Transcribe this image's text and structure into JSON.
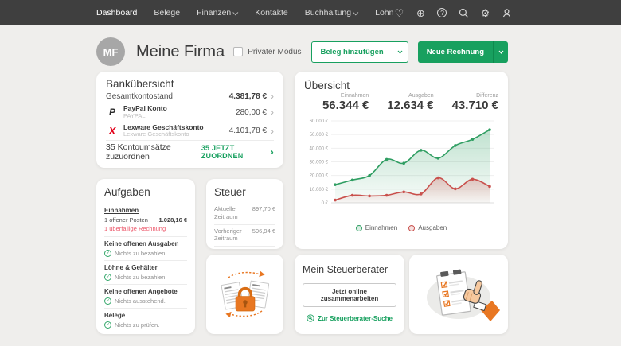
{
  "nav": {
    "items": [
      {
        "label": "Dashboard"
      },
      {
        "label": "Belege"
      },
      {
        "label": "Finanzen"
      },
      {
        "label": "Kontakte"
      },
      {
        "label": "Buchhaltung"
      },
      {
        "label": "Lohn"
      }
    ]
  },
  "header": {
    "avatar_initials": "MF",
    "company_name": "Meine Firma",
    "private_mode_label": "Privater Modus",
    "add_receipt_label": "Beleg hinzufügen",
    "new_invoice_label": "Neue Rechnung"
  },
  "bank": {
    "title": "Bankübersicht",
    "total_label": "Gesamtkontostand",
    "total_value": "4.381,78 €",
    "accounts": [
      {
        "name": "PayPal Konto",
        "subtitle": "PAYPAL",
        "value": "280,00 €"
      },
      {
        "name": "Lexware Geschäftskonto",
        "subtitle": "Lexware Geschäftskonto",
        "value": "4.101,78 €"
      }
    ],
    "pending_label": "35 Kontoumsätze zuzuordnen",
    "pending_action": "35 JETZT ZUORDNEN"
  },
  "overview": {
    "title": "Übersicht",
    "stats": [
      {
        "label": "Einnahmen",
        "value": "56.344 €"
      },
      {
        "label": "Ausgaben",
        "value": "12.634 €"
      },
      {
        "label": "Differenz",
        "value": "43.710 €"
      }
    ]
  },
  "chart_data": {
    "type": "area",
    "x": [
      1,
      2,
      3,
      4,
      5,
      6,
      7,
      8,
      9,
      10
    ],
    "series": [
      {
        "name": "Einnahmen",
        "color": "#2f9e62",
        "values": [
          13300,
          16700,
          20000,
          31800,
          29000,
          38500,
          32700,
          42000,
          46500,
          53500
        ]
      },
      {
        "name": "Ausgaben",
        "color": "#c9504c",
        "values": [
          2000,
          5500,
          5000,
          5500,
          8000,
          6500,
          18300,
          10300,
          17300,
          12000
        ]
      }
    ],
    "ylim": [
      0,
      60000
    ],
    "yticks": [
      "60.000 €",
      "50.000 €",
      "40.000 €",
      "30.000 €",
      "20.000 €",
      "10.000 €",
      "0 €"
    ],
    "grid": true,
    "legend_position": "bottom"
  },
  "tasks": {
    "title": "Aufgaben",
    "sections": [
      {
        "heading": "Einnahmen",
        "open_item": "1 offener Posten",
        "open_value": "1.028,16 €",
        "alert_item": "1 überfällige Rechnung"
      },
      {
        "heading": "Keine offenen Ausgaben",
        "status": "Nichts zu bezahlen."
      },
      {
        "heading": "Löhne & Gehälter",
        "status": "Nichts zu bezahlen"
      },
      {
        "heading": "Keine offenen Angebote",
        "status": "Nichts ausstehend."
      },
      {
        "heading": "Belege",
        "status": "Nichts zu prüfen."
      }
    ]
  },
  "tax": {
    "title": "Steuer",
    "rows": [
      {
        "label": "Aktueller Zeitraum",
        "value": "897,70 €"
      },
      {
        "label": "Vorheriger Zeitraum",
        "value": "596,94 €"
      }
    ]
  },
  "advisor": {
    "title": "Mein Steuerberater",
    "button_label": "Jetzt online zusammenarbeiten",
    "link_label": "Zur Steuerberater-Suche"
  },
  "colors": {
    "accent_green": "#18a05f",
    "navbar": "#3f3f3f",
    "alert_red": "#ec5568",
    "illustration_orange": "#e87722",
    "chart_green": "#2f9e62",
    "chart_red": "#c9504c"
  }
}
